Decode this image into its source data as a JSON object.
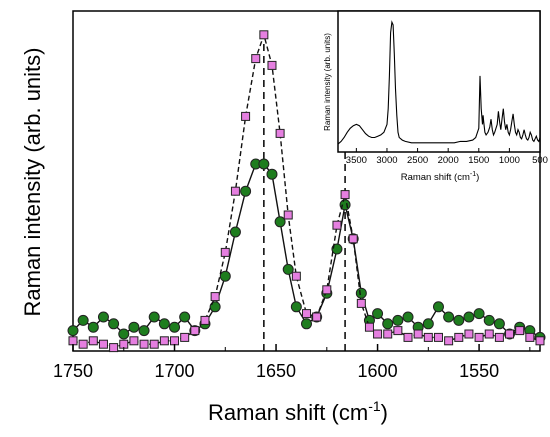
{
  "chart_data": [
    {
      "id": "main",
      "type": "scatter",
      "xlabel": "Raman shift (cm",
      "xlabel_sup": "-1",
      "xlabel_end": ")",
      "ylabel": "Raman intensity (arb. units)",
      "xlim": [
        1750,
        1520
      ],
      "ylim": [
        0,
        1.0
      ],
      "x_reversed": true,
      "y_tick_labels_shown": false,
      "xticks": [
        1750,
        1700,
        1650,
        1600,
        1550
      ],
      "xtick_labels": [
        "1750",
        "1700",
        "1650",
        "1600",
        "1550"
      ],
      "dashed_lines_x": [
        1656,
        1616
      ],
      "series": [
        {
          "marker": "square",
          "color": "#e57fe0",
          "edge": "#222222",
          "line": "dash",
          "peaks": [
            {
              "center": 1656,
              "height": 0.93,
              "width": 9.5
            },
            {
              "center": 1616,
              "height": 0.45,
              "width": 4.2
            }
          ],
          "baseline": 0.02,
          "x": [
            1750,
            1745,
            1740,
            1735,
            1730,
            1725,
            1720,
            1715,
            1710,
            1705,
            1700,
            1695,
            1690,
            1685,
            1680,
            1675,
            1670,
            1665,
            1660,
            1656,
            1652,
            1648,
            1644,
            1640,
            1635,
            1630,
            1625,
            1620,
            1616,
            1612,
            1608,
            1604,
            1600,
            1595,
            1590,
            1585,
            1580,
            1575,
            1570,
            1565,
            1560,
            1555,
            1550,
            1545,
            1540,
            1535,
            1530,
            1525,
            1520
          ],
          "y": [
            0.03,
            0.02,
            0.03,
            0.02,
            0.01,
            0.02,
            0.03,
            0.02,
            0.02,
            0.03,
            0.03,
            0.04,
            0.06,
            0.09,
            0.16,
            0.29,
            0.47,
            0.69,
            0.86,
            0.93,
            0.84,
            0.64,
            0.4,
            0.22,
            0.11,
            0.1,
            0.18,
            0.37,
            0.46,
            0.33,
            0.14,
            0.07,
            0.05,
            0.05,
            0.06,
            0.04,
            0.05,
            0.04,
            0.04,
            0.03,
            0.04,
            0.05,
            0.04,
            0.05,
            0.04,
            0.05,
            0.06,
            0.04,
            0.03
          ]
        },
        {
          "marker": "circle",
          "color": "#1e7d1e",
          "edge": "#222222",
          "line": "solid",
          "x": [
            1750,
            1745,
            1740,
            1735,
            1730,
            1725,
            1720,
            1715,
            1710,
            1705,
            1700,
            1695,
            1690,
            1685,
            1680,
            1675,
            1670,
            1665,
            1660,
            1656,
            1652,
            1648,
            1644,
            1640,
            1635,
            1630,
            1625,
            1620,
            1616,
            1612,
            1608,
            1604,
            1600,
            1595,
            1590,
            1585,
            1580,
            1575,
            1570,
            1565,
            1560,
            1555,
            1550,
            1545,
            1540,
            1535,
            1530,
            1525,
            1520
          ],
          "y": [
            0.06,
            0.09,
            0.07,
            0.1,
            0.08,
            0.05,
            0.07,
            0.06,
            0.1,
            0.08,
            0.07,
            0.1,
            0.06,
            0.08,
            0.13,
            0.22,
            0.35,
            0.47,
            0.55,
            0.55,
            0.52,
            0.38,
            0.24,
            0.13,
            0.08,
            0.1,
            0.17,
            0.3,
            0.43,
            0.33,
            0.17,
            0.09,
            0.11,
            0.08,
            0.09,
            0.1,
            0.07,
            0.08,
            0.13,
            0.1,
            0.09,
            0.1,
            0.11,
            0.09,
            0.08,
            0.05,
            0.07,
            0.06,
            0.04
          ]
        }
      ]
    },
    {
      "id": "inset",
      "type": "line",
      "xlabel": "Raman shift (cm",
      "xlabel_sup": "-1",
      "xlabel_end": ")",
      "ylabel": "Raman intensity (arb. units)",
      "xlim": [
        3800,
        500
      ],
      "ylim": [
        0,
        1.0
      ],
      "x_reversed": true,
      "xticks": [
        3500,
        3000,
        2500,
        2000,
        1500,
        1000,
        500
      ],
      "xtick_labels": [
        "3500",
        "3000",
        "2500",
        "2000",
        "1500",
        "1000",
        "500"
      ],
      "series": [
        {
          "color": "#000000",
          "x": [
            3800,
            3750,
            3700,
            3650,
            3600,
            3550,
            3500,
            3450,
            3400,
            3350,
            3300,
            3250,
            3200,
            3150,
            3100,
            3050,
            3000,
            2980,
            2960,
            2940,
            2920,
            2900,
            2880,
            2860,
            2840,
            2820,
            2800,
            2750,
            2700,
            2600,
            2500,
            2400,
            2300,
            2200,
            2100,
            2000,
            1900,
            1800,
            1700,
            1600,
            1550,
            1500,
            1480,
            1460,
            1440,
            1430,
            1420,
            1400,
            1380,
            1350,
            1320,
            1300,
            1280,
            1260,
            1240,
            1200,
            1180,
            1160,
            1140,
            1120,
            1100,
            1080,
            1060,
            1040,
            1020,
            1000,
            980,
            960,
            940,
            920,
            900,
            880,
            860,
            840,
            820,
            800,
            780,
            760,
            740,
            720,
            700,
            680,
            660,
            640,
            620,
            600,
            580,
            560,
            540,
            520,
            500
          ],
          "y": [
            0.03,
            0.05,
            0.08,
            0.12,
            0.15,
            0.17,
            0.18,
            0.17,
            0.14,
            0.11,
            0.09,
            0.08,
            0.08,
            0.09,
            0.1,
            0.12,
            0.18,
            0.3,
            0.55,
            0.88,
            0.96,
            0.94,
            0.72,
            0.45,
            0.25,
            0.12,
            0.08,
            0.06,
            0.05,
            0.04,
            0.04,
            0.04,
            0.04,
            0.04,
            0.04,
            0.04,
            0.04,
            0.05,
            0.05,
            0.06,
            0.08,
            0.15,
            0.55,
            0.3,
            0.18,
            0.25,
            0.2,
            0.12,
            0.1,
            0.12,
            0.16,
            0.22,
            0.14,
            0.1,
            0.12,
            0.18,
            0.28,
            0.2,
            0.14,
            0.22,
            0.3,
            0.2,
            0.14,
            0.18,
            0.12,
            0.1,
            0.14,
            0.2,
            0.26,
            0.18,
            0.12,
            0.1,
            0.14,
            0.12,
            0.08,
            0.07,
            0.1,
            0.14,
            0.1,
            0.07,
            0.06,
            0.08,
            0.12,
            0.1,
            0.06,
            0.05,
            0.07,
            0.09,
            0.06,
            0.05,
            0.08
          ]
        }
      ]
    }
  ]
}
